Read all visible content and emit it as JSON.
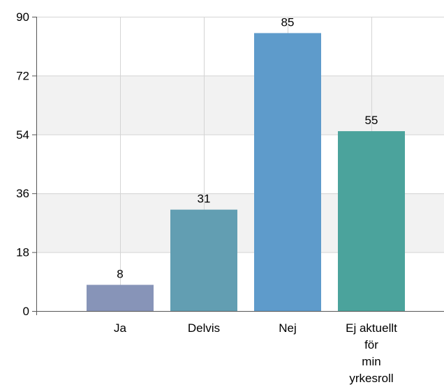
{
  "chart_data": {
    "type": "bar",
    "categories": [
      "Ja",
      "Delvis",
      "Nej",
      "Ej aktuellt för min yrkesroll"
    ],
    "category_lines": [
      [
        "Ja"
      ],
      [
        "Delvis"
      ],
      [
        "Nej"
      ],
      [
        "Ej aktuellt",
        "för",
        "min",
        "yrkesroll"
      ]
    ],
    "values": [
      8,
      31,
      85,
      55
    ],
    "data_labels": [
      "8",
      "31",
      "85",
      "55"
    ],
    "colors": [
      "#8794b8",
      "#629eb2",
      "#5e9bcb",
      "#4ba39c"
    ],
    "title": "",
    "xlabel": "",
    "ylabel": "",
    "ylim": [
      0,
      90
    ],
    "yticks": [
      0,
      18,
      36,
      54,
      72,
      90
    ],
    "ytick_labels": [
      "0",
      "18",
      "36",
      "54",
      "72",
      "90"
    ],
    "grid": true,
    "band_color": "#f2f2f2",
    "legend": "none"
  }
}
